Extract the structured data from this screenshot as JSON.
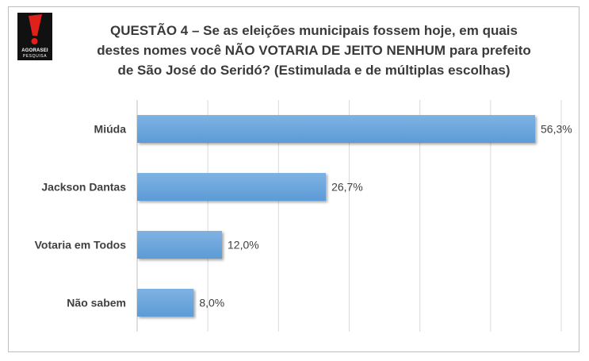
{
  "brand": {
    "logo_text": "AGORASEI",
    "logo_subtext": "PESQUISA",
    "colors": {
      "logo_bg": "#111111",
      "logo_mark": "#e0201b"
    }
  },
  "title_lines": [
    "QUESTÃO 4 – Se as eleições municipais fossem hoje, em quais",
    "destes nomes você NÃO VOTARIA DE JEITO NENHUM para prefeito",
    "de São José do Seridó? (Estimulada e de múltiplas escolhas)"
  ],
  "chart_data": {
    "type": "bar",
    "orientation": "horizontal",
    "categories": [
      "Miúda",
      "Jackson Dantas",
      "Votaria em Todos",
      "Não sabem"
    ],
    "values": [
      56.3,
      26.7,
      12.0,
      8.0
    ],
    "value_labels": [
      "56,3%",
      "26,7%",
      "12,0%",
      "8,0%"
    ],
    "xlim": [
      0,
      60
    ],
    "grid": true,
    "legend": "none",
    "colors": {
      "bar": "#5b9bd5",
      "bar_top": "#7fb2e3",
      "grid": "#d9d9d9"
    }
  }
}
